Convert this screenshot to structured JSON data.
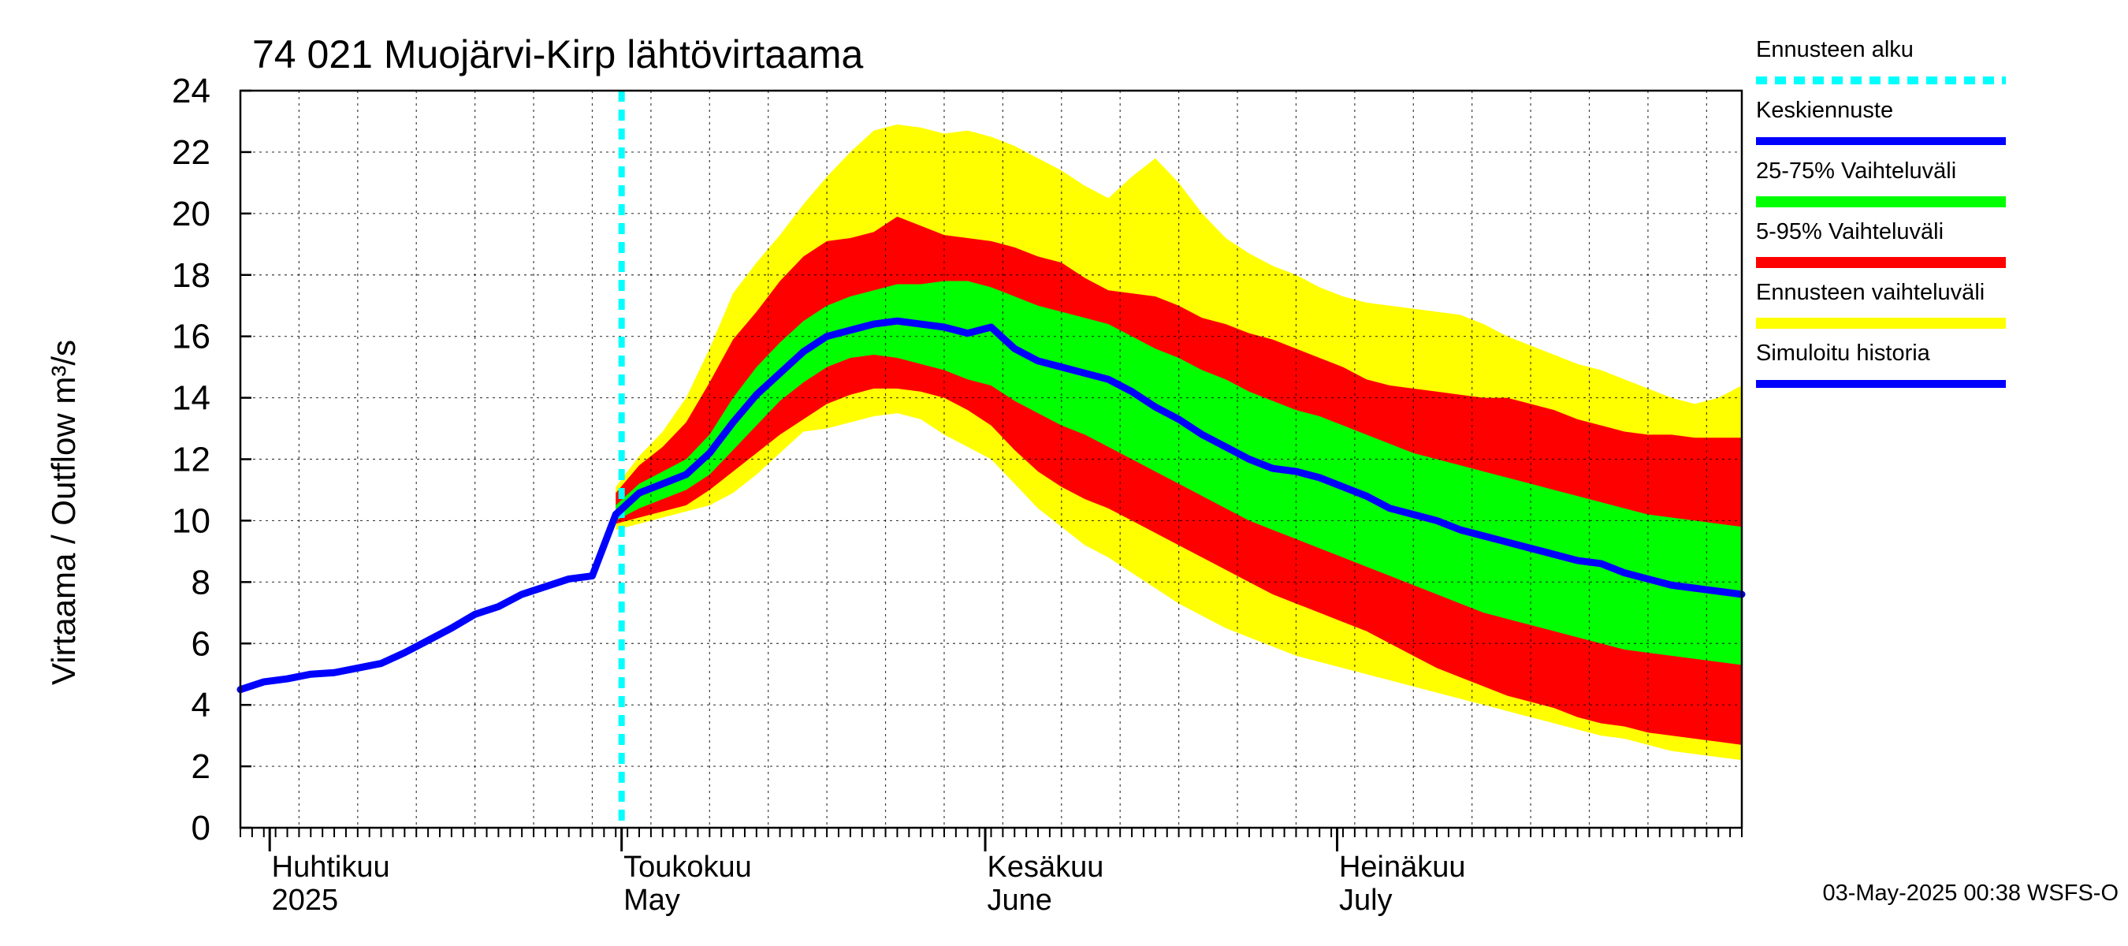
{
  "chart_data": {
    "type": "area",
    "title": "74 021 Muojärvi-Kirp lähtövirtaama",
    "ylabel": "Virtaama / Outflow    m³/s",
    "ylim": [
      0,
      24
    ],
    "yticks": [
      0,
      2,
      4,
      6,
      8,
      10,
      12,
      14,
      16,
      18,
      20,
      22,
      24
    ],
    "x_unit": "days since 2025-03-29",
    "xlim": [
      0,
      128
    ],
    "forecast_start": 32.5,
    "month_labels": [
      {
        "day": 3,
        "fi": "Huhtikuu",
        "en": "2025"
      },
      {
        "day": 33,
        "fi": "Toukokuu",
        "en": "May"
      },
      {
        "day": 64,
        "fi": "Kesäkuu",
        "en": "June"
      },
      {
        "day": 94,
        "fi": "Heinäkuu",
        "en": "July"
      }
    ],
    "history": {
      "name": "Simuloitu historia",
      "x": [
        0,
        2,
        4,
        6,
        8,
        10,
        12,
        14,
        16,
        18,
        20,
        22,
        24,
        26,
        28,
        30,
        32
      ],
      "y": [
        4.5,
        4.75,
        4.85,
        5.0,
        5.05,
        5.2,
        5.35,
        5.7,
        6.1,
        6.5,
        6.95,
        7.2,
        7.6,
        7.85,
        8.1,
        8.2,
        10.2
      ]
    },
    "forecast": {
      "x": [
        32,
        34,
        36,
        38,
        40,
        42,
        44,
        46,
        48,
        50,
        52,
        54,
        56,
        58,
        60,
        62,
        64,
        66,
        68,
        70,
        72,
        74,
        76,
        78,
        80,
        82,
        84,
        86,
        88,
        90,
        92,
        94,
        96,
        98,
        100,
        102,
        104,
        106,
        108,
        110,
        112,
        114,
        116,
        118,
        120,
        122,
        124,
        126,
        128
      ],
      "p50": [
        10.2,
        10.9,
        11.2,
        11.5,
        12.2,
        13.2,
        14.1,
        14.8,
        15.5,
        16.0,
        16.2,
        16.4,
        16.5,
        16.4,
        16.3,
        16.1,
        16.3,
        15.6,
        15.2,
        15.0,
        14.8,
        14.6,
        14.2,
        13.7,
        13.3,
        12.8,
        12.4,
        12.0,
        11.7,
        11.6,
        11.4,
        11.1,
        10.8,
        10.4,
        10.2,
        10.0,
        9.7,
        9.5,
        9.3,
        9.1,
        8.9,
        8.7,
        8.6,
        8.3,
        8.1,
        7.9,
        7.8,
        7.7,
        7.6
      ],
      "p25": [
        10.0,
        10.4,
        10.7,
        11.0,
        11.5,
        12.3,
        13.1,
        13.9,
        14.5,
        15.0,
        15.3,
        15.4,
        15.3,
        15.1,
        14.9,
        14.6,
        14.4,
        13.9,
        13.5,
        13.1,
        12.8,
        12.4,
        12.0,
        11.6,
        11.2,
        10.8,
        10.4,
        10.0,
        9.7,
        9.4,
        9.1,
        8.8,
        8.5,
        8.2,
        7.9,
        7.6,
        7.3,
        7.0,
        6.8,
        6.6,
        6.4,
        6.2,
        6.0,
        5.8,
        5.7,
        5.6,
        5.5,
        5.4,
        5.3
      ],
      "p75": [
        10.5,
        11.2,
        11.6,
        12.0,
        12.8,
        14.0,
        15.0,
        15.8,
        16.5,
        17.0,
        17.3,
        17.5,
        17.7,
        17.7,
        17.8,
        17.8,
        17.6,
        17.3,
        17.0,
        16.8,
        16.6,
        16.4,
        16.0,
        15.6,
        15.3,
        14.9,
        14.6,
        14.2,
        13.9,
        13.6,
        13.4,
        13.1,
        12.8,
        12.5,
        12.2,
        12.0,
        11.8,
        11.6,
        11.4,
        11.2,
        11.0,
        10.8,
        10.6,
        10.4,
        10.2,
        10.1,
        10.0,
        9.9,
        9.8
      ],
      "p05": [
        9.9,
        10.1,
        10.3,
        10.5,
        11.0,
        11.6,
        12.2,
        12.8,
        13.3,
        13.8,
        14.1,
        14.3,
        14.3,
        14.2,
        14.0,
        13.6,
        13.1,
        12.3,
        11.6,
        11.1,
        10.7,
        10.4,
        10.0,
        9.6,
        9.2,
        8.8,
        8.4,
        8.0,
        7.6,
        7.3,
        7.0,
        6.7,
        6.4,
        6.0,
        5.6,
        5.2,
        4.9,
        4.6,
        4.3,
        4.1,
        3.9,
        3.6,
        3.4,
        3.3,
        3.1,
        3.0,
        2.9,
        2.8,
        2.7
      ],
      "p95": [
        10.9,
        11.8,
        12.4,
        13.2,
        14.5,
        15.9,
        16.8,
        17.8,
        18.6,
        19.1,
        19.2,
        19.4,
        19.9,
        19.6,
        19.3,
        19.2,
        19.1,
        18.9,
        18.6,
        18.4,
        17.9,
        17.5,
        17.4,
        17.3,
        17.0,
        16.6,
        16.4,
        16.1,
        15.9,
        15.6,
        15.3,
        15.0,
        14.6,
        14.4,
        14.3,
        14.2,
        14.1,
        14.0,
        14.0,
        13.8,
        13.6,
        13.3,
        13.1,
        12.9,
        12.8,
        12.8,
        12.7,
        12.7,
        12.7
      ],
      "min": [
        9.7,
        9.9,
        10.1,
        10.3,
        10.5,
        10.9,
        11.5,
        12.2,
        12.9,
        13.0,
        13.2,
        13.4,
        13.5,
        13.3,
        12.8,
        12.4,
        12.0,
        11.2,
        10.4,
        9.8,
        9.2,
        8.8,
        8.3,
        7.8,
        7.3,
        6.9,
        6.5,
        6.2,
        5.9,
        5.6,
        5.4,
        5.2,
        5.0,
        4.8,
        4.6,
        4.4,
        4.2,
        4.0,
        3.8,
        3.6,
        3.4,
        3.2,
        3.0,
        2.9,
        2.7,
        2.5,
        2.4,
        2.3,
        2.2
      ],
      "max": [
        11.1,
        12.1,
        12.9,
        14.0,
        15.6,
        17.4,
        18.4,
        19.3,
        20.3,
        21.2,
        22.0,
        22.7,
        22.9,
        22.8,
        22.6,
        22.7,
        22.5,
        22.2,
        21.8,
        21.4,
        20.9,
        20.5,
        21.2,
        21.8,
        21.0,
        20.0,
        19.2,
        18.7,
        18.3,
        18.0,
        17.6,
        17.3,
        17.1,
        17.0,
        16.9,
        16.8,
        16.7,
        16.4,
        16.0,
        15.7,
        15.4,
        15.1,
        14.9,
        14.6,
        14.3,
        14.0,
        13.8,
        14.0,
        14.4
      ]
    },
    "legend": [
      {
        "label": "Ennusteen alku",
        "color": "#00ffff",
        "style": "dashed"
      },
      {
        "label": "Keskiennuste",
        "color": "#0000ff",
        "style": "line"
      },
      {
        "label": "25-75% Vaihteluväli",
        "color": "#00ff00",
        "style": "band"
      },
      {
        "label": "5-95% Vaihteluväli",
        "color": "#ff0000",
        "style": "band"
      },
      {
        "label": "Ennusteen vaihteluväli",
        "color": "#ffff00",
        "style": "band"
      },
      {
        "label": "Simuloitu historia",
        "color": "#0000ff",
        "style": "line"
      }
    ],
    "timestamp": "03-May-2025 00:38 WSFS-O",
    "colors": {
      "full": "#ffff00",
      "p5_95": "#ff0000",
      "p25_75": "#00ff00",
      "median": "#0000ff",
      "start": "#00ffff"
    }
  }
}
